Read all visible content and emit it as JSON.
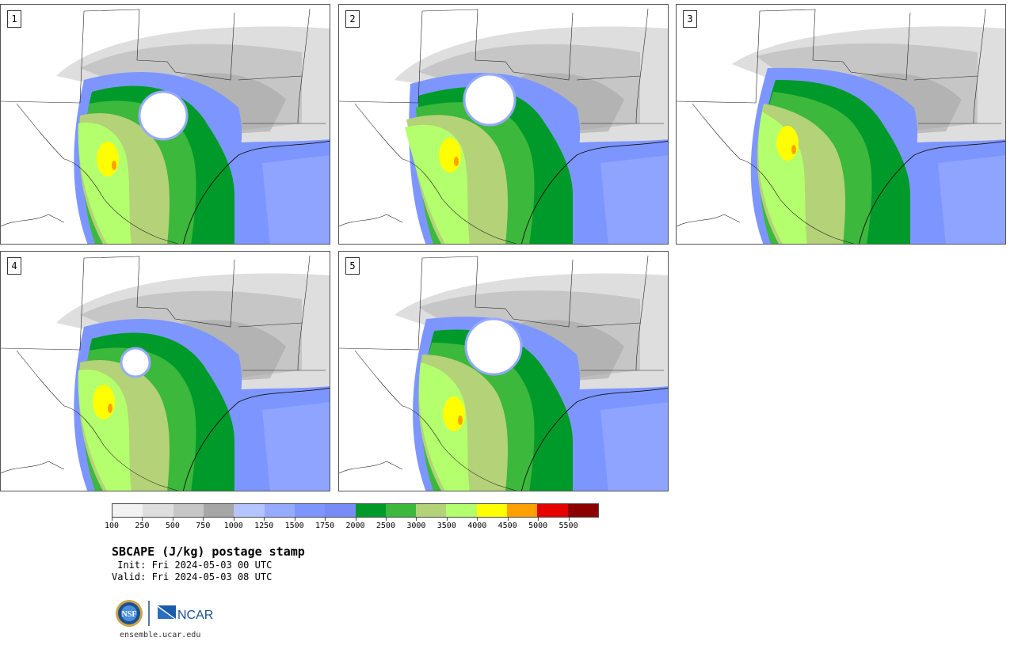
{
  "panels": [
    {
      "label": "1"
    },
    {
      "label": "2"
    },
    {
      "label": "3"
    },
    {
      "label": "4"
    },
    {
      "label": "5"
    }
  ],
  "colorbar": {
    "colors": [
      "#f2f2f2",
      "#dedede",
      "#c6c6c6",
      "#a6a6a6",
      "#b4c4ff",
      "#96aaff",
      "#7d96ff",
      "#788cf8",
      "#009a2a",
      "#3cb83c",
      "#b4d278",
      "#b4ff6e",
      "#ffff00",
      "#ffa000",
      "#e60000",
      "#8c0000"
    ],
    "ticks": [
      "100",
      "250",
      "500",
      "750",
      "1000",
      "1250",
      "1500",
      "1750",
      "2000",
      "2500",
      "3000",
      "3500",
      "4000",
      "4500",
      "5000",
      "5500"
    ]
  },
  "title": "SBCAPE (J/kg) postage stamp",
  "init_line": " Init: Fri 2024-05-03 00 UTC",
  "valid_line": "Valid: Fri 2024-05-03 08 UTC",
  "logos": {
    "nsf": "NSF",
    "ncar": "NCAR"
  },
  "url": "ensemble.ucar.edu"
}
